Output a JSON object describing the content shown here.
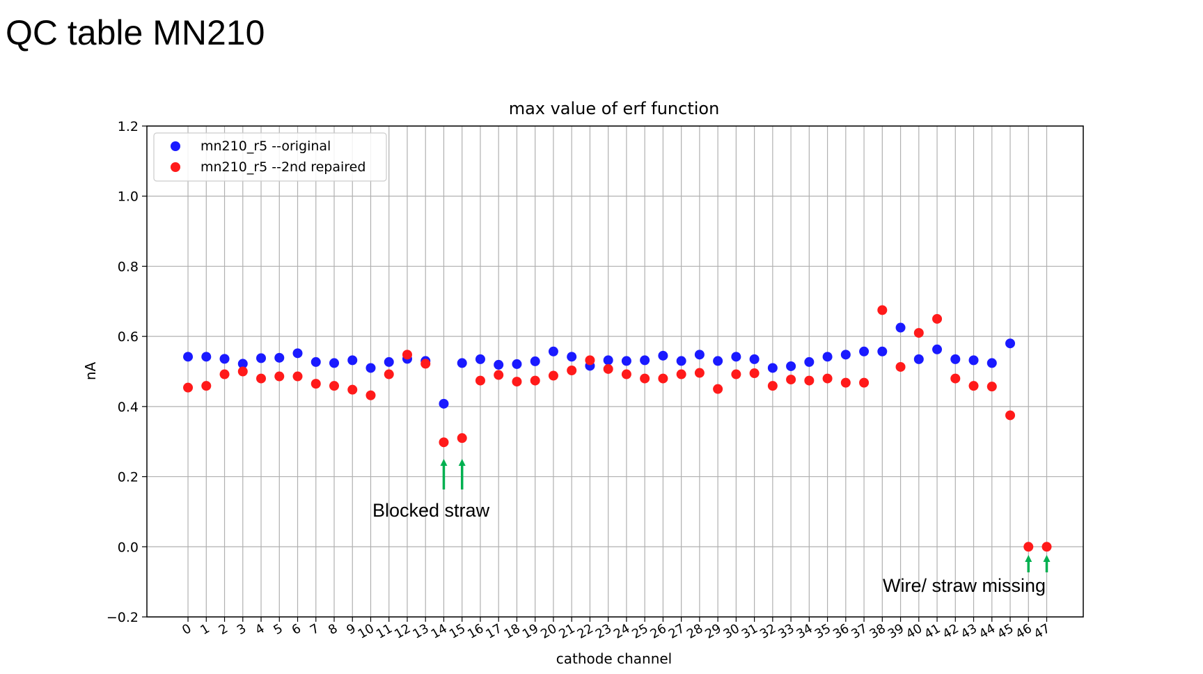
{
  "slide": {
    "title": "QC table MN210"
  },
  "chart_data": {
    "type": "scatter",
    "title": "max value of erf function",
    "xlabel": "cathode channel",
    "ylabel": "nA",
    "ylim": [
      -0.2,
      1.2
    ],
    "yticks": [
      "−0.2",
      "0.0",
      "0.2",
      "0.4",
      "0.6",
      "0.8",
      "1.0",
      "1.2"
    ],
    "xticks": [
      "0",
      "1",
      "2",
      "3",
      "4",
      "5",
      "6",
      "7",
      "8",
      "9",
      "10",
      "11",
      "12",
      "13",
      "14",
      "15",
      "16",
      "17",
      "18",
      "19",
      "20",
      "21",
      "22",
      "23",
      "24",
      "25",
      "26",
      "27",
      "28",
      "29",
      "30",
      "31",
      "32",
      "33",
      "34",
      "35",
      "36",
      "37",
      "38",
      "39",
      "40",
      "41",
      "42",
      "43",
      "44",
      "45",
      "46",
      "47"
    ],
    "grid": true,
    "legend_position": "top-left",
    "series": [
      {
        "name": "mn210_r5 --original",
        "color": "#1a1aff",
        "x": [
          0,
          1,
          2,
          3,
          4,
          5,
          6,
          7,
          8,
          9,
          10,
          11,
          12,
          13,
          14,
          15,
          16,
          17,
          18,
          19,
          20,
          21,
          22,
          23,
          24,
          25,
          26,
          27,
          28,
          29,
          30,
          31,
          32,
          33,
          34,
          35,
          36,
          37,
          38,
          39,
          40,
          41,
          42,
          43,
          44,
          45
        ],
        "y": [
          0.542,
          0.542,
          0.536,
          0.522,
          0.538,
          0.539,
          0.552,
          0.527,
          0.524,
          0.532,
          0.51,
          0.527,
          0.536,
          0.53,
          0.408,
          0.524,
          0.535,
          0.519,
          0.521,
          0.529,
          0.557,
          0.542,
          0.516,
          0.532,
          0.53,
          0.532,
          0.545,
          0.53,
          0.548,
          0.53,
          0.542,
          0.535,
          0.51,
          0.515,
          0.527,
          0.542,
          0.548,
          0.557,
          0.557,
          0.625,
          0.535,
          0.563,
          0.535,
          0.532,
          0.524,
          0.58
        ]
      },
      {
        "name": "mn210_r5 --2nd repaired",
        "color": "#ff1a1a",
        "x": [
          0,
          1,
          2,
          3,
          4,
          5,
          6,
          7,
          8,
          9,
          10,
          11,
          12,
          13,
          14,
          15,
          16,
          17,
          18,
          19,
          20,
          21,
          22,
          23,
          24,
          25,
          26,
          27,
          28,
          29,
          30,
          31,
          32,
          33,
          34,
          35,
          36,
          37,
          38,
          39,
          40,
          41,
          42,
          43,
          44,
          45,
          46,
          47
        ],
        "y": [
          0.454,
          0.459,
          0.492,
          0.5,
          0.48,
          0.486,
          0.486,
          0.465,
          0.459,
          0.448,
          0.432,
          0.492,
          0.548,
          0.522,
          0.298,
          0.31,
          0.474,
          0.49,
          0.471,
          0.474,
          0.488,
          0.503,
          0.532,
          0.507,
          0.492,
          0.48,
          0.48,
          0.492,
          0.496,
          0.45,
          0.492,
          0.495,
          0.459,
          0.477,
          0.474,
          0.48,
          0.468,
          0.468,
          0.675,
          0.513,
          0.61,
          0.65,
          0.48,
          0.459,
          0.457,
          0.375,
          0.0,
          0.0
        ]
      }
    ],
    "annotations": [
      {
        "text": "Blocked straw",
        "arrow_x": [
          14,
          15
        ],
        "arrow_color": "#00b050"
      },
      {
        "text": "Wire/ straw missing",
        "arrow_x": [
          46,
          47
        ],
        "arrow_color": "#00b050"
      }
    ]
  }
}
